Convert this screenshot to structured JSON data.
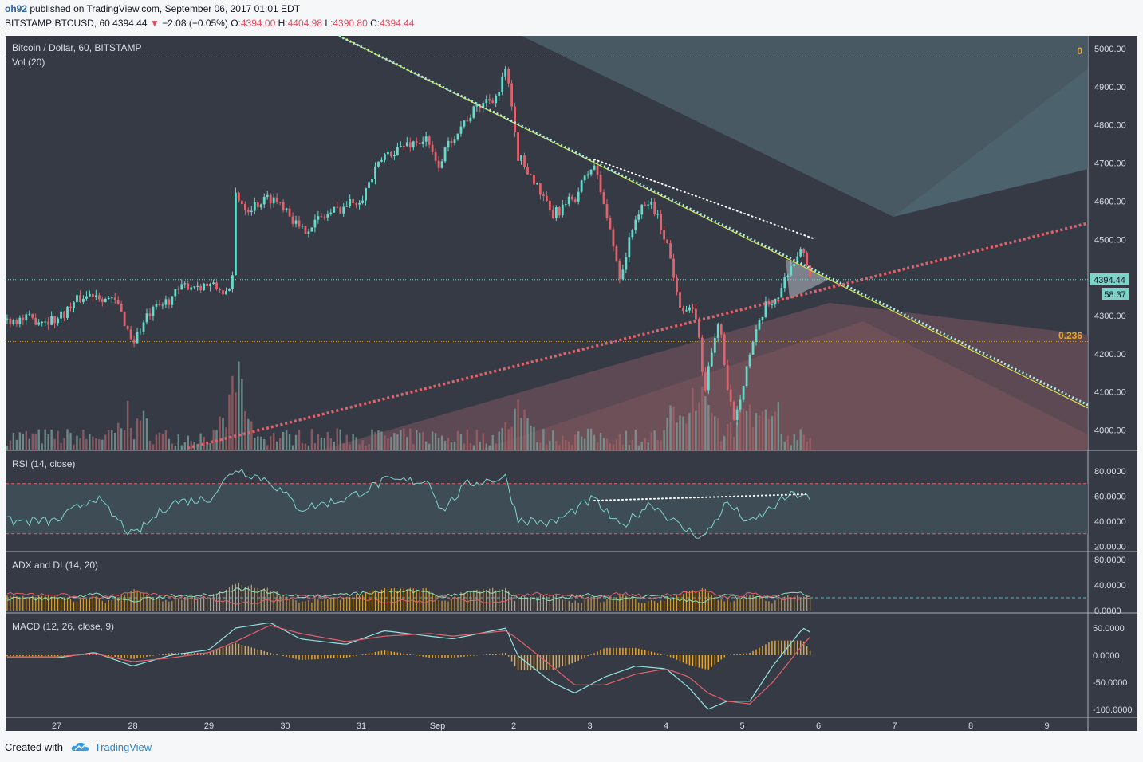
{
  "header": {
    "user": "oh92",
    "published": "published on TradingView.com, September 06, 2017 01:01 EDT",
    "symbol": "BITSTAMP:BTCUSD, 60",
    "last": "4394.44",
    "change": "−2.08 (−0.05%)",
    "o_label": "O:",
    "o_val": "4394.00",
    "h_label": "H:",
    "h_val": "4404.98",
    "l_label": "L:",
    "l_val": "4390.80",
    "c_label": "C:",
    "c_val": "4394.44"
  },
  "panes": {
    "main_title": "Bitcoin / Dollar, 60, BITSTAMP",
    "vol_title": "Vol (20)",
    "rsi_title": "RSI (14, close)",
    "adx_title": "ADX and DI (14, 20)",
    "macd_title": "MACD (12, 26, close, 9)"
  },
  "price_badge": "4394.44",
  "timer_badge": "58:37",
  "fib_labels": [
    "0",
    "0.236"
  ],
  "footer": {
    "created": "Created with",
    "brand": "TradingView"
  },
  "colors": {
    "up": "#66d9c9",
    "down": "#e0626c",
    "pane_bg": "#363a45",
    "orange": "#e8a62c",
    "rsi_line": "#7ed3c9"
  },
  "chart_data": [
    {
      "type": "candlestick",
      "title": "Bitcoin / Dollar, 60, BITSTAMP",
      "x_ticks": [
        "27",
        "28",
        "29",
        "30",
        "31",
        "Sep",
        "2",
        "3",
        "4",
        "5",
        "6",
        "7",
        "8",
        "9"
      ],
      "y_ticks": [
        "5000.00",
        "4900.00",
        "4800.00",
        "4700.00",
        "4600.00",
        "4500.00",
        "4300.00",
        "4200.00",
        "4100.00",
        "4000.00"
      ],
      "ylim": [
        3950,
        5030
      ],
      "last_price": 4394.44,
      "fib_levels": [
        {
          "label": "0",
          "value": 4978
        },
        {
          "label": "0.236",
          "value": 4232
        }
      ],
      "close_path": [
        {
          "t": 0.0,
          "p": 4290
        },
        {
          "t": 0.3,
          "p": 4345
        },
        {
          "t": 0.5,
          "p": 4360
        },
        {
          "t": 0.8,
          "p": 4330
        },
        {
          "t": 1.0,
          "p": 4230
        },
        {
          "t": 1.2,
          "p": 4300
        },
        {
          "t": 1.4,
          "p": 4330
        },
        {
          "t": 1.7,
          "p": 4380
        },
        {
          "t": 2.0,
          "p": 4380
        },
        {
          "t": 2.3,
          "p": 4355
        },
        {
          "t": 2.35,
          "p": 4620
        },
        {
          "t": 2.5,
          "p": 4580
        },
        {
          "t": 2.8,
          "p": 4610
        },
        {
          "t": 3.0,
          "p": 4590
        },
        {
          "t": 3.2,
          "p": 4520
        },
        {
          "t": 3.5,
          "p": 4560
        },
        {
          "t": 3.8,
          "p": 4590
        },
        {
          "t": 4.0,
          "p": 4610
        },
        {
          "t": 4.3,
          "p": 4720
        },
        {
          "t": 4.6,
          "p": 4750
        },
        {
          "t": 4.85,
          "p": 4760
        },
        {
          "t": 5.0,
          "p": 4690
        },
        {
          "t": 5.2,
          "p": 4770
        },
        {
          "t": 5.4,
          "p": 4820
        },
        {
          "t": 5.6,
          "p": 4860
        },
        {
          "t": 5.8,
          "p": 4880
        },
        {
          "t": 5.9,
          "p": 4950
        },
        {
          "t": 6.05,
          "p": 4720
        },
        {
          "t": 6.2,
          "p": 4680
        },
        {
          "t": 6.5,
          "p": 4560
        },
        {
          "t": 6.8,
          "p": 4610
        },
        {
          "t": 7.05,
          "p": 4700
        },
        {
          "t": 7.2,
          "p": 4580
        },
        {
          "t": 7.4,
          "p": 4400
        },
        {
          "t": 7.6,
          "p": 4560
        },
        {
          "t": 7.8,
          "p": 4600
        },
        {
          "t": 8.0,
          "p": 4500
        },
        {
          "t": 8.2,
          "p": 4320
        },
        {
          "t": 8.4,
          "p": 4300
        },
        {
          "t": 8.5,
          "p": 4100
        },
        {
          "t": 8.7,
          "p": 4300
        },
        {
          "t": 8.8,
          "p": 4100
        },
        {
          "t": 8.9,
          "p": 4030
        },
        {
          "t": 9.1,
          "p": 4200
        },
        {
          "t": 9.3,
          "p": 4320
        },
        {
          "t": 9.5,
          "p": 4360
        },
        {
          "t": 9.6,
          "p": 4420
        },
        {
          "t": 9.8,
          "p": 4470
        },
        {
          "t": 9.92,
          "p": 4394
        }
      ],
      "volume": {
        "title": "Vol (20)",
        "spikes": [
          {
            "t": 1.0,
            "v": "high"
          },
          {
            "t": 2.35,
            "v": "highest"
          },
          {
            "t": 6.05,
            "v": "high"
          },
          {
            "t": 8.5,
            "v": "high"
          }
        ]
      }
    },
    {
      "type": "line",
      "title": "RSI (14, close)",
      "y_ticks": [
        "80.0000",
        "60.0000",
        "40.0000",
        "20.0000"
      ],
      "ylim": [
        15,
        88
      ],
      "bands": [
        70,
        30
      ],
      "points": [
        {
          "t": 0.0,
          "v": 40
        },
        {
          "t": 0.5,
          "v": 60
        },
        {
          "t": 1.0,
          "v": 28
        },
        {
          "t": 1.5,
          "v": 55
        },
        {
          "t": 2.0,
          "v": 58
        },
        {
          "t": 2.35,
          "v": 82
        },
        {
          "t": 2.8,
          "v": 72
        },
        {
          "t": 3.2,
          "v": 50
        },
        {
          "t": 3.8,
          "v": 58
        },
        {
          "t": 4.3,
          "v": 72
        },
        {
          "t": 4.9,
          "v": 72
        },
        {
          "t": 5.05,
          "v": 48
        },
        {
          "t": 5.4,
          "v": 70
        },
        {
          "t": 5.9,
          "v": 75
        },
        {
          "t": 6.05,
          "v": 42
        },
        {
          "t": 6.5,
          "v": 38
        },
        {
          "t": 7.05,
          "v": 58
        },
        {
          "t": 7.4,
          "v": 35
        },
        {
          "t": 7.8,
          "v": 55
        },
        {
          "t": 8.2,
          "v": 35
        },
        {
          "t": 8.5,
          "v": 27
        },
        {
          "t": 8.8,
          "v": 55
        },
        {
          "t": 9.1,
          "v": 38
        },
        {
          "t": 9.6,
          "v": 60
        },
        {
          "t": 9.8,
          "v": 62
        },
        {
          "t": 9.92,
          "v": 54
        }
      ]
    },
    {
      "type": "line",
      "title": "ADX and DI (14, 20)",
      "y_ticks": [
        "80.0000",
        "40.0000",
        "0.0000"
      ],
      "ylim": [
        0,
        85
      ],
      "threshold": 20
    },
    {
      "type": "line",
      "title": "MACD (12, 26, close, 9)",
      "y_ticks": [
        "50.0000",
        "0.0000",
        "-50.0000",
        "-100.0000"
      ],
      "ylim": [
        -112,
        72
      ],
      "macd": [
        {
          "t": 0.0,
          "v": -5
        },
        {
          "t": 0.5,
          "v": 5
        },
        {
          "t": 1.0,
          "v": -20
        },
        {
          "t": 1.5,
          "v": 0
        },
        {
          "t": 2.0,
          "v": 10
        },
        {
          "t": 2.35,
          "v": 50
        },
        {
          "t": 2.8,
          "v": 60
        },
        {
          "t": 3.2,
          "v": 30
        },
        {
          "t": 3.8,
          "v": 20
        },
        {
          "t": 4.3,
          "v": 45
        },
        {
          "t": 4.9,
          "v": 35
        },
        {
          "t": 5.2,
          "v": 30
        },
        {
          "t": 5.9,
          "v": 50
        },
        {
          "t": 6.05,
          "v": 0
        },
        {
          "t": 6.5,
          "v": -50
        },
        {
          "t": 6.8,
          "v": -70
        },
        {
          "t": 7.2,
          "v": -40
        },
        {
          "t": 7.6,
          "v": -20
        },
        {
          "t": 8.0,
          "v": -25
        },
        {
          "t": 8.3,
          "v": -60
        },
        {
          "t": 8.55,
          "v": -100
        },
        {
          "t": 8.8,
          "v": -85
        },
        {
          "t": 9.1,
          "v": -85
        },
        {
          "t": 9.4,
          "v": -20
        },
        {
          "t": 9.8,
          "v": 50
        },
        {
          "t": 9.92,
          "v": 40
        }
      ],
      "signal": [
        {
          "t": 0.0,
          "v": -3
        },
        {
          "t": 0.5,
          "v": 3
        },
        {
          "t": 1.0,
          "v": -12
        },
        {
          "t": 1.5,
          "v": -5
        },
        {
          "t": 2.0,
          "v": 5
        },
        {
          "t": 2.35,
          "v": 25
        },
        {
          "t": 2.8,
          "v": 55
        },
        {
          "t": 3.2,
          "v": 40
        },
        {
          "t": 3.8,
          "v": 25
        },
        {
          "t": 4.3,
          "v": 35
        },
        {
          "t": 4.9,
          "v": 40
        },
        {
          "t": 5.2,
          "v": 35
        },
        {
          "t": 5.9,
          "v": 45
        },
        {
          "t": 6.05,
          "v": 30
        },
        {
          "t": 6.5,
          "v": -20
        },
        {
          "t": 6.8,
          "v": -55
        },
        {
          "t": 7.2,
          "v": -55
        },
        {
          "t": 7.6,
          "v": -35
        },
        {
          "t": 8.0,
          "v": -25
        },
        {
          "t": 8.3,
          "v": -40
        },
        {
          "t": 8.55,
          "v": -70
        },
        {
          "t": 8.8,
          "v": -85
        },
        {
          "t": 9.1,
          "v": -90
        },
        {
          "t": 9.4,
          "v": -50
        },
        {
          "t": 9.8,
          "v": 20
        },
        {
          "t": 9.92,
          "v": 38
        }
      ]
    }
  ]
}
